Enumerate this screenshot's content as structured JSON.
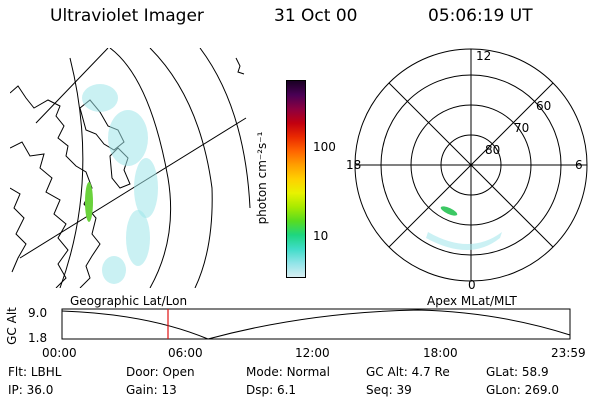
{
  "header": {
    "instrument": "Ultraviolet Imager",
    "date": "31 Oct 00",
    "time": "05:06:19 UT"
  },
  "colorbar": {
    "unit_label": "photon cm⁻²s⁻¹",
    "ticks": [
      "100",
      "10"
    ],
    "colors": [
      "#1a0024",
      "#4a0055",
      "#8c0040",
      "#c20010",
      "#ea2a00",
      "#ff6400",
      "#ff9f00",
      "#ffd000",
      "#e8f200",
      "#a8ea00",
      "#58dc20",
      "#1ed680",
      "#40dcc8",
      "#90e4e8",
      "#d8eef2"
    ]
  },
  "polar_plot": {
    "mlt_labels": {
      "top": "12",
      "left": "18",
      "right": "6",
      "bottom": "0"
    },
    "lat_labels": [
      "60",
      "70",
      "80"
    ]
  },
  "timeline": {
    "left_title": "Geographic Lat/Lon",
    "right_title": "Apex MLat/MLT",
    "axis_label": "GC Alt",
    "y_ticks": [
      "9.0",
      "1.8"
    ],
    "x_ticks": [
      "00:00",
      "06:00",
      "12:00",
      "18:00",
      "23:59"
    ],
    "marker_color": "#e01010"
  },
  "status": {
    "row1": [
      {
        "label": "Flt:",
        "value": "LBHL"
      },
      {
        "label": "Door:",
        "value": "Open"
      },
      {
        "label": "Mode:",
        "value": "Normal"
      },
      {
        "label": "GC Alt:",
        "value": "4.7 Re"
      },
      {
        "label": "GLat:",
        "value": "58.9"
      }
    ],
    "row2": [
      {
        "label": "IP:",
        "value": "36.0"
      },
      {
        "label": "Gain:",
        "value": "13"
      },
      {
        "label": "Dsp:",
        "value": "6.1"
      },
      {
        "label": "Seq:",
        "value": "39"
      },
      {
        "label": "GLon:",
        "value": "269.0"
      }
    ]
  }
}
